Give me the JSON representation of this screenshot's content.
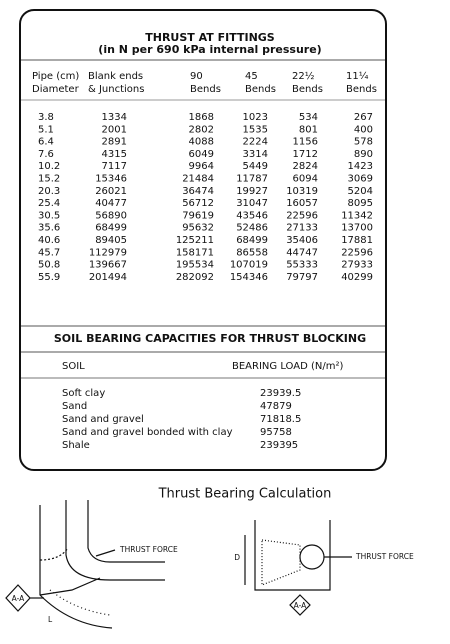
{
  "thrust_table": {
    "title": "THRUST AT FITTINGS",
    "subtitle": "(in N per 690 kPa internal pressure)",
    "header": [
      [
        "Pipe (cm)",
        "Diameter"
      ],
      [
        "Blank ends",
        "& Junctions"
      ],
      [
        "90",
        "Bends"
      ],
      [
        "45",
        "Bends"
      ],
      [
        "22½",
        "Bends"
      ],
      [
        "11¼",
        "Bends"
      ]
    ],
    "rows": [
      [
        3.8,
        1334,
        1868,
        1023,
        534,
        267
      ],
      [
        5.1,
        2001,
        2802,
        1535,
        801,
        400
      ],
      [
        6.4,
        2891,
        4088,
        2224,
        1156,
        578
      ],
      [
        7.6,
        4315,
        6049,
        3314,
        1712,
        890
      ],
      [
        10.2,
        7117,
        9964,
        5449,
        2824,
        1423
      ],
      [
        15.2,
        15346,
        21484,
        11787,
        6094,
        3069
      ],
      [
        20.3,
        26021,
        36474,
        19927,
        10319,
        5204
      ],
      [
        25.4,
        40477,
        56712,
        31047,
        16057,
        8095
      ],
      [
        30.5,
        56890,
        79619,
        43546,
        22596,
        11342
      ],
      [
        35.6,
        68499,
        95632,
        52486,
        27133,
        13700
      ],
      [
        40.6,
        89405,
        125211,
        68499,
        35406,
        17881
      ],
      [
        45.7,
        112979,
        158171,
        86558,
        44747,
        22596
      ],
      [
        50.8,
        139667,
        195534,
        107019,
        55333,
        27933
      ],
      [
        55.9,
        201494,
        282092,
        154346,
        79797,
        40299
      ]
    ]
  },
  "soil_table": {
    "title": "SOIL BEARING CAPACITIES FOR THRUST BLOCKING",
    "header": [
      "SOIL",
      "BEARING LOAD (N/m²)"
    ],
    "rows": [
      [
        "Soft clay",
        23939.5
      ],
      [
        "Sand",
        47879
      ],
      [
        "Sand and gravel",
        71818.5
      ],
      [
        "Sand and gravel bonded with clay",
        95758
      ],
      [
        "Shale",
        239395
      ]
    ]
  },
  "caption": "Thrust Bearing Calculation",
  "diagram_left": {
    "force_label": "THRUST FORCE",
    "section_label": "A-A",
    "length_label": "L"
  },
  "diagram_right": {
    "depth_label": "D",
    "force_label": "THRUST FORCE",
    "section_label": "A-A"
  }
}
